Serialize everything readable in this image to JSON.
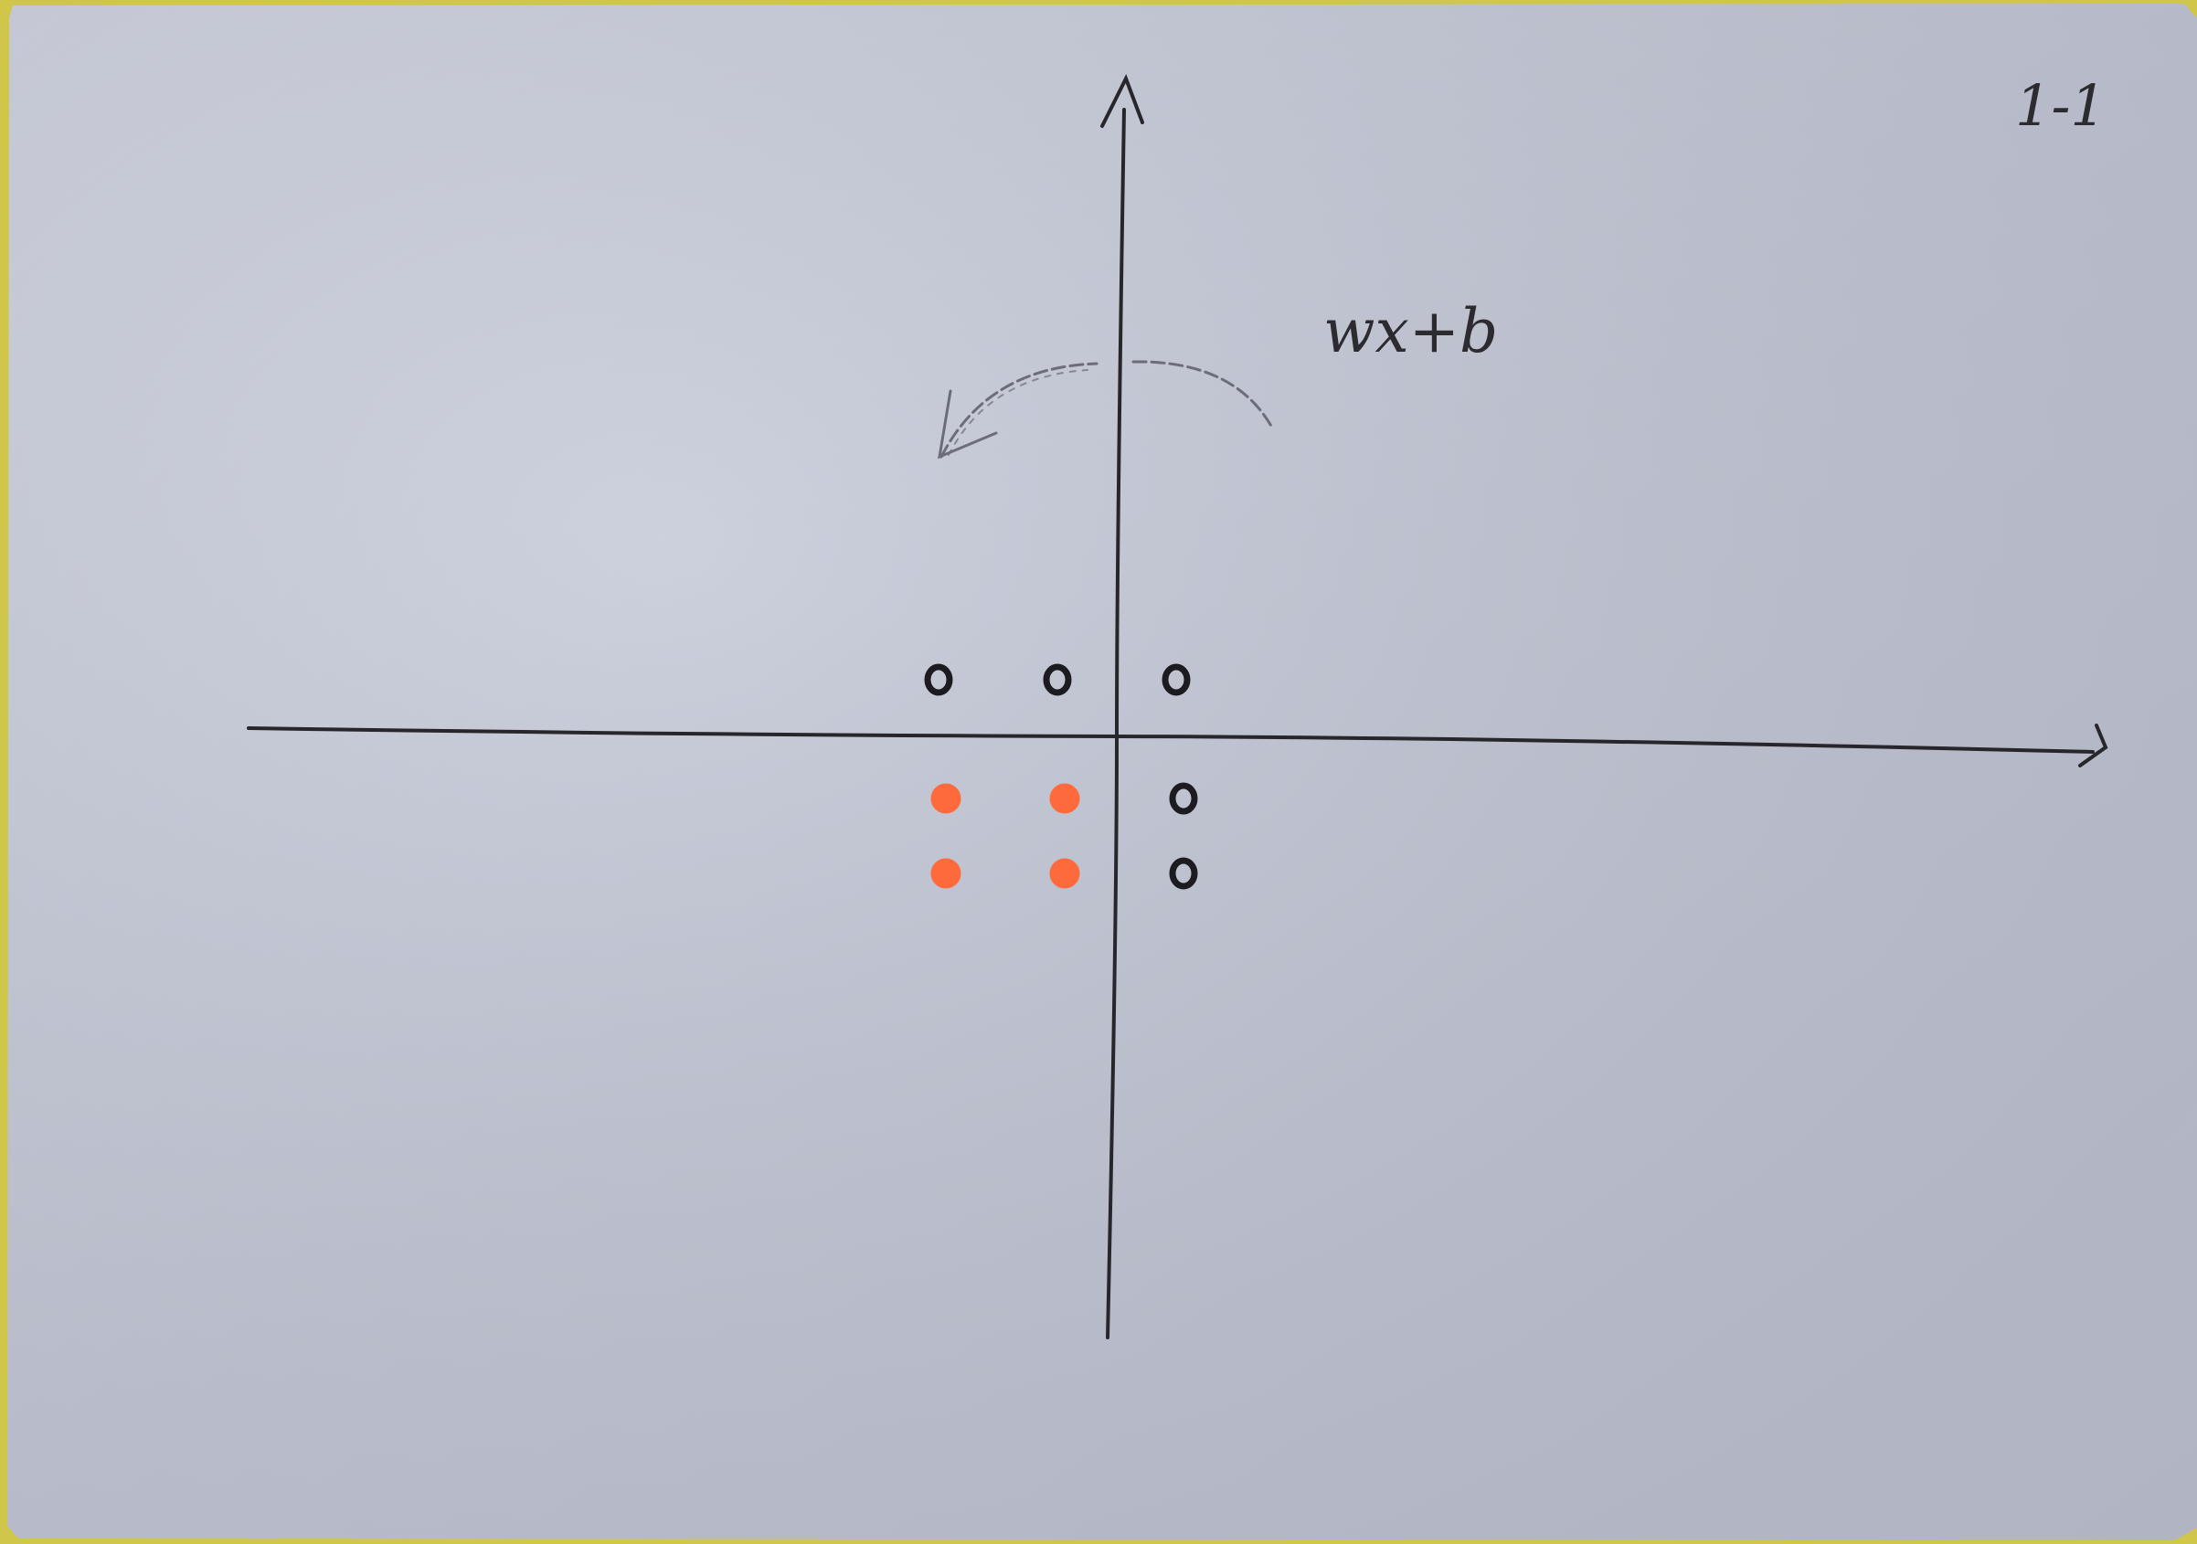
{
  "page_number": "1-1",
  "function_label": "wx+b",
  "points": [
    {
      "x": -3,
      "y": 1,
      "class": "black"
    },
    {
      "x": -1,
      "y": 1,
      "class": "black"
    },
    {
      "x": 1,
      "y": 1,
      "class": "black"
    },
    {
      "x": 1,
      "y": -1,
      "class": "black"
    },
    {
      "x": 1,
      "y": -2,
      "class": "black"
    },
    {
      "x": -3,
      "y": -1,
      "class": "orange"
    },
    {
      "x": -1,
      "y": -1,
      "class": "orange"
    },
    {
      "x": -3,
      "y": -2,
      "class": "orange"
    },
    {
      "x": -1,
      "y": -2,
      "class": "orange"
    }
  ],
  "colors": {
    "paper": "#c6cad8",
    "ink": "#26262b",
    "black_point": "#1c1c20",
    "orange_point": "#ff6a3d",
    "pencil": "#6b6e78"
  },
  "rotation_arrow": {
    "style": "dashed-pencil",
    "direction": "counterclockwise"
  }
}
